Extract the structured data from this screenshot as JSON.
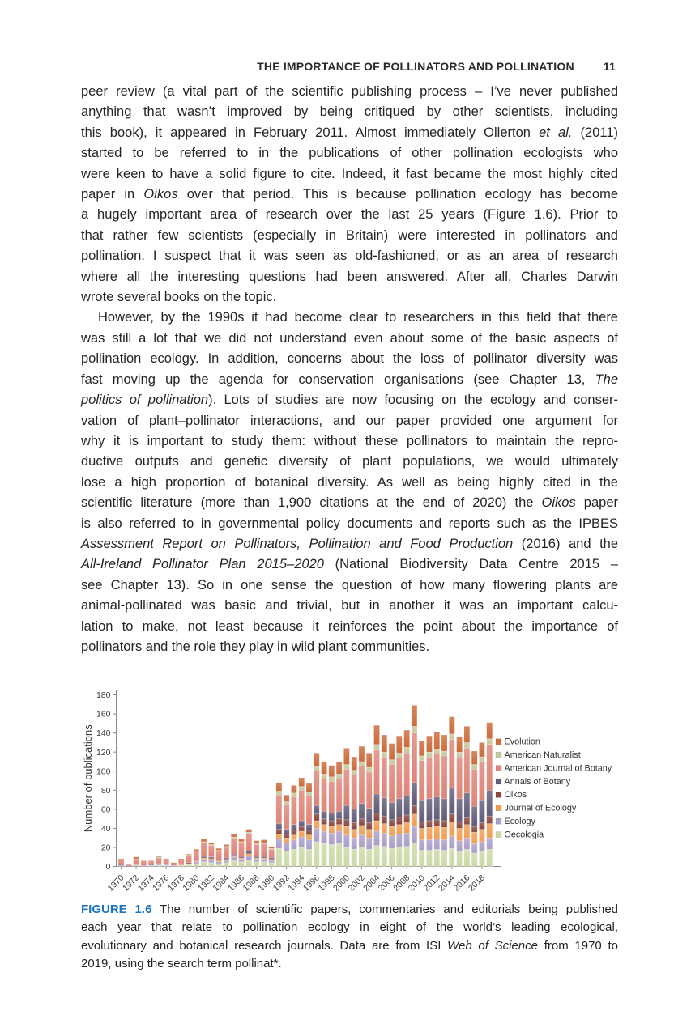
{
  "header": {
    "title": "THE IMPORTANCE OF POLLINATORS AND POLLINATION",
    "page_number": "11"
  },
  "body": {
    "paragraphs": [
      {
        "indent": false,
        "lines": [
          [
            {
              "t": "peer review (a vital part of the scientific publishing process – I’ve never published"
            }
          ],
          [
            {
              "t": "anything that wasn’t improved by being critiqued by other scientists, including"
            }
          ],
          [
            {
              "t": "this book), it appeared in February 2011. Almost immediately Ollerton "
            },
            {
              "t": "et al.",
              "i": 1
            },
            {
              "t": " (2011)"
            }
          ],
          [
            {
              "t": "started to be referred to in the publications of other pollination ecologists who"
            }
          ],
          [
            {
              "t": "were keen to have a solid figure to cite. Indeed, it fast became the most highly cited"
            }
          ],
          [
            {
              "t": "paper in "
            },
            {
              "t": "Oikos",
              "i": 1
            },
            {
              "t": " over that period. This is because pollination ecology has become"
            }
          ],
          [
            {
              "t": "a hugely important area of research over the last 25 years (Figure 1.6). Prior to"
            }
          ],
          [
            {
              "t": "that rather few scientists (especially in Britain) were interested in pollinators and"
            }
          ],
          [
            {
              "t": "pollination. I suspect that it was seen as old-fashioned, or as an area of research"
            }
          ],
          [
            {
              "t": "where all the interesting questions had been answered. After all, Charles Darwin"
            }
          ],
          [
            {
              "t": "wrote several books on the topic."
            }
          ]
        ]
      },
      {
        "indent": true,
        "lines": [
          [
            {
              "t": "However, by the 1990s it had become clear to researchers in this field that there"
            }
          ],
          [
            {
              "t": "was still a lot that we did not understand even about some of the basic aspects of"
            }
          ],
          [
            {
              "t": "pollination ecology. In addition, concerns about the loss of pollinator diversity was"
            }
          ],
          [
            {
              "t": "fast moving up the agenda for conservation organisations (see Chapter 13, "
            },
            {
              "t": "The",
              "i": 1
            }
          ],
          [
            {
              "t": "politics of pollination",
              "i": 1
            },
            {
              "t": "). Lots of studies are now focusing on the ecology and conser-"
            }
          ],
          [
            {
              "t": "vation of plant–pollinator interactions, and our paper provided one argument for"
            }
          ],
          [
            {
              "t": "why it is important to study them: without these pollinators to maintain the repro-"
            }
          ],
          [
            {
              "t": "ductive outputs and genetic diversity of plant populations, we would ultimately"
            }
          ],
          [
            {
              "t": "lose a high proportion of botanical diversity. As well as being highly cited in the"
            }
          ],
          [
            {
              "t": "scientific literature (more than 1,900 citations at the end of 2020) the "
            },
            {
              "t": "Oikos",
              "i": 1
            },
            {
              "t": " paper"
            }
          ],
          [
            {
              "t": "is also referred to in governmental policy documents and reports such as the IPBES"
            }
          ],
          [
            {
              "t": "Assessment Report on Pollinators, Pollination and Food Production",
              "i": 1
            },
            {
              "t": " (2016) and the"
            }
          ],
          [
            {
              "t": "All-Ireland Pollinator Plan 2015–2020",
              "i": 1
            },
            {
              "t": " (National Biodiversity Data Centre 2015 –"
            }
          ],
          [
            {
              "t": "see Chapter 13). So in one sense the question of how many flowering plants are"
            }
          ],
          [
            {
              "t": "animal-pollinated was basic and trivial, but in another it was an important calcu-"
            }
          ],
          [
            {
              "t": "lation to make, not least because it reinforces the point about the importance of"
            }
          ],
          [
            {
              "t": "pollinators and the role they play in wild plant communities."
            }
          ]
        ]
      }
    ]
  },
  "caption": {
    "lines": [
      [
        {
          "t": "FIGURE 1.6",
          "f": 1
        },
        {
          "t": " The number of scientific papers, commentaries and editorials being published"
        }
      ],
      [
        {
          "t": "each year that relate to pollination ecology in eight of the world’s leading ecological,"
        }
      ],
      [
        {
          "t": "evolutionary and botanical research journals. Data are from ISI "
        },
        {
          "t": "Web of Science",
          "i": 1
        },
        {
          "t": " from 1970 to"
        }
      ],
      [
        {
          "t": "2019, using the search term pollinat*."
        }
      ]
    ]
  },
  "chart_data": {
    "type": "bar",
    "stacked": true,
    "title": "",
    "xlabel": "",
    "ylabel": "Number of publications",
    "ylim": [
      0,
      180
    ],
    "ytick_step": 20,
    "grid": false,
    "legend_position": "right",
    "years": [
      1970,
      1971,
      1972,
      1973,
      1974,
      1975,
      1976,
      1977,
      1978,
      1979,
      1980,
      1981,
      1982,
      1983,
      1984,
      1985,
      1986,
      1987,
      1988,
      1989,
      1990,
      1991,
      1992,
      1993,
      1994,
      1995,
      1996,
      1997,
      1998,
      1999,
      2000,
      2001,
      2002,
      2003,
      2004,
      2005,
      2006,
      2007,
      2008,
      2009,
      2010,
      2011,
      2012,
      2013,
      2014,
      2015,
      2016,
      2017,
      2018,
      2019
    ],
    "xtick_labels": [
      "1970",
      "1972",
      "1974",
      "1976",
      "1978",
      "1980",
      "1982",
      "1984",
      "1986",
      "1988",
      "1990",
      "1992",
      "1994",
      "1996",
      "1998",
      "2000",
      "2002",
      "2004",
      "2006",
      "2008",
      "2010",
      "2012",
      "2014",
      "2016",
      "2018"
    ],
    "legend_order_top_to_bottom": [
      "Evolution",
      "American Naturalist",
      "American Journal of Botany",
      "Annals of Botany",
      "Oikos",
      "Journal of Ecology",
      "Ecology",
      "Oecologia"
    ],
    "series_bottom_to_top": [
      {
        "name": "Oecologia",
        "color": "#ccd9a6",
        "values": [
          0,
          0,
          0,
          0,
          1,
          1,
          1,
          0,
          1,
          2,
          3,
          5,
          4,
          3,
          4,
          6,
          5,
          7,
          5,
          5,
          4,
          19,
          16,
          18,
          20,
          18,
          26,
          24,
          23,
          24,
          20,
          18,
          20,
          18,
          22,
          21,
          19,
          20,
          21,
          25,
          17,
          17,
          18,
          17,
          19,
          16,
          18,
          14,
          16,
          18
        ]
      },
      {
        "name": "Ecology",
        "color": "#ab9fcb",
        "values": [
          1,
          0,
          1,
          1,
          0,
          1,
          1,
          1,
          0,
          1,
          2,
          3,
          3,
          2,
          2,
          4,
          3,
          4,
          3,
          3,
          2,
          10,
          9,
          10,
          11,
          10,
          14,
          13,
          12,
          13,
          13,
          12,
          13,
          12,
          15,
          14,
          13,
          14,
          14,
          17,
          11,
          11,
          11,
          11,
          13,
          11,
          12,
          10,
          10,
          12
        ]
      },
      {
        "name": "Journal of Ecology",
        "color": "#f09e54",
        "values": [
          0,
          0,
          1,
          0,
          0,
          0,
          0,
          0,
          1,
          0,
          1,
          1,
          1,
          1,
          1,
          1,
          1,
          2,
          1,
          1,
          1,
          5,
          5,
          5,
          6,
          5,
          8,
          7,
          7,
          7,
          9,
          9,
          10,
          9,
          11,
          10,
          10,
          10,
          11,
          13,
          12,
          13,
          13,
          13,
          15,
          13,
          14,
          12,
          13,
          15
        ]
      },
      {
        "name": "Oikos",
        "color": "#8a463f",
        "values": [
          1,
          0,
          0,
          0,
          0,
          1,
          0,
          0,
          0,
          1,
          0,
          1,
          1,
          1,
          1,
          1,
          1,
          1,
          1,
          1,
          1,
          5,
          4,
          5,
          5,
          5,
          7,
          6,
          6,
          6,
          7,
          7,
          7,
          7,
          8,
          8,
          7,
          8,
          8,
          9,
          7,
          7,
          7,
          7,
          8,
          7,
          7,
          6,
          7,
          8
        ]
      },
      {
        "name": "Annals of Botany",
        "color": "#625d79",
        "values": [
          0,
          0,
          0,
          0,
          1,
          0,
          0,
          0,
          1,
          0,
          1,
          1,
          1,
          0,
          1,
          1,
          1,
          2,
          1,
          1,
          1,
          6,
          5,
          6,
          6,
          6,
          9,
          8,
          8,
          8,
          15,
          14,
          16,
          15,
          20,
          19,
          18,
          19,
          20,
          24,
          22,
          23,
          24,
          23,
          27,
          24,
          26,
          21,
          23,
          27
        ]
      },
      {
        "name": "American Journal of Botany",
        "color": "#de8579",
        "values": [
          5,
          2,
          6,
          4,
          3,
          6,
          5,
          2,
          4,
          7,
          9,
          14,
          12,
          9,
          11,
          16,
          14,
          18,
          12,
          13,
          9,
          30,
          26,
          29,
          32,
          30,
          36,
          34,
          33,
          34,
          38,
          36,
          39,
          38,
          46,
          43,
          40,
          43,
          45,
          52,
          42,
          44,
          45,
          45,
          51,
          44,
          47,
          39,
          41,
          48
        ]
      },
      {
        "name": "American Naturalist",
        "color": "#c6c89c",
        "values": [
          0,
          0,
          0,
          0,
          0,
          1,
          0,
          0,
          0,
          1,
          0,
          1,
          1,
          1,
          1,
          2,
          1,
          2,
          1,
          1,
          1,
          4,
          3,
          4,
          4,
          4,
          5,
          5,
          5,
          5,
          5,
          5,
          5,
          5,
          6,
          5,
          5,
          5,
          6,
          7,
          5,
          5,
          5,
          5,
          6,
          5,
          6,
          5,
          5,
          6
        ]
      },
      {
        "name": "Evolution",
        "color": "#cc6b3c",
        "values": [
          1,
          1,
          2,
          1,
          1,
          1,
          1,
          1,
          1,
          1,
          2,
          3,
          2,
          2,
          2,
          3,
          3,
          3,
          3,
          3,
          2,
          9,
          7,
          8,
          9,
          9,
          14,
          13,
          12,
          13,
          17,
          14,
          16,
          15,
          20,
          18,
          17,
          18,
          18,
          22,
          16,
          17,
          18,
          17,
          18,
          16,
          17,
          14,
          15,
          17
        ]
      }
    ]
  }
}
